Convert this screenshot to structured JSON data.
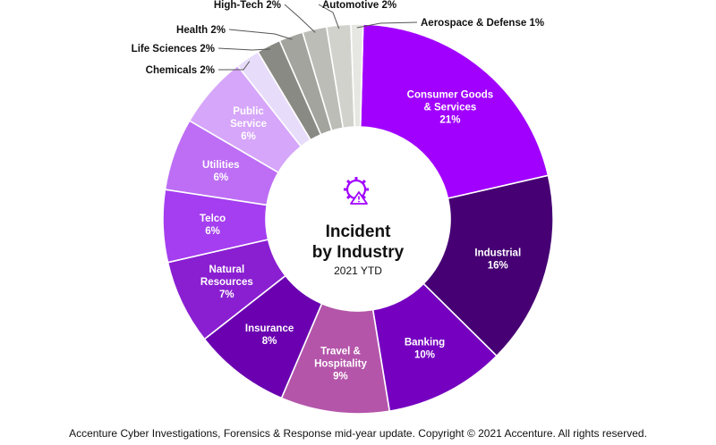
{
  "chart_data": {
    "type": "pie",
    "donut": true,
    "center": {
      "title_lines": [
        "Incident",
        "by Industry"
      ],
      "subtitle": "2021 YTD"
    },
    "slices": [
      {
        "lines": [
          "Consumer Goods",
          "& Services",
          "21%"
        ],
        "value": 21,
        "color": "#a100ff",
        "label_pos": "inside"
      },
      {
        "lines": [
          "Industrial",
          "16%"
        ],
        "value": 16,
        "color": "#460073",
        "label_pos": "inside"
      },
      {
        "lines": [
          "Banking",
          "10%"
        ],
        "value": 10,
        "color": "#7500c0",
        "label_pos": "inside"
      },
      {
        "lines": [
          "Travel &",
          "Hospitality",
          "9%"
        ],
        "value": 9,
        "color": "#b455aa",
        "label_pos": "inside"
      },
      {
        "lines": [
          "Insurance",
          "8%"
        ],
        "value": 8,
        "color": "#6a00b0",
        "label_pos": "inside"
      },
      {
        "lines": [
          "Natural",
          "Resources",
          "7%"
        ],
        "value": 7,
        "color": "#8a1fd1",
        "label_pos": "inside"
      },
      {
        "lines": [
          "Telco",
          "6%"
        ],
        "value": 6,
        "color": "#a43ef0",
        "label_pos": "inside"
      },
      {
        "lines": [
          "Utilities",
          "6%"
        ],
        "value": 6,
        "color": "#bd6ef5",
        "label_pos": "inside"
      },
      {
        "lines": [
          "Public",
          "Service",
          "6%"
        ],
        "value": 6,
        "color": "#d6a6fa",
        "label_pos": "inside"
      },
      {
        "lines": [
          "Chemicals 2%"
        ],
        "value": 2,
        "color": "#e8dcfb",
        "label_pos": "outside"
      },
      {
        "lines": [
          "Life Sciences 2%"
        ],
        "value": 2,
        "color": "#8a8a84",
        "label_pos": "outside"
      },
      {
        "lines": [
          "Health 2%"
        ],
        "value": 2,
        "color": "#a4a49e",
        "label_pos": "outside"
      },
      {
        "lines": [
          "High-Tech 2%"
        ],
        "value": 2,
        "color": "#bdbdb7",
        "label_pos": "outside"
      },
      {
        "lines": [
          "Automotive 2%"
        ],
        "value": 2,
        "color": "#d2d2cd",
        "label_pos": "outside"
      },
      {
        "lines": [
          "Aerospace & Defense 1%"
        ],
        "value": 1,
        "color": "#e6e6e2",
        "label_pos": "outside"
      }
    ],
    "accent_color": "#a100ff"
  },
  "footer": "Accenture Cyber Investigations, Forensics & Response mid-year update. Copyright © 2021 Accenture. All rights reserved."
}
